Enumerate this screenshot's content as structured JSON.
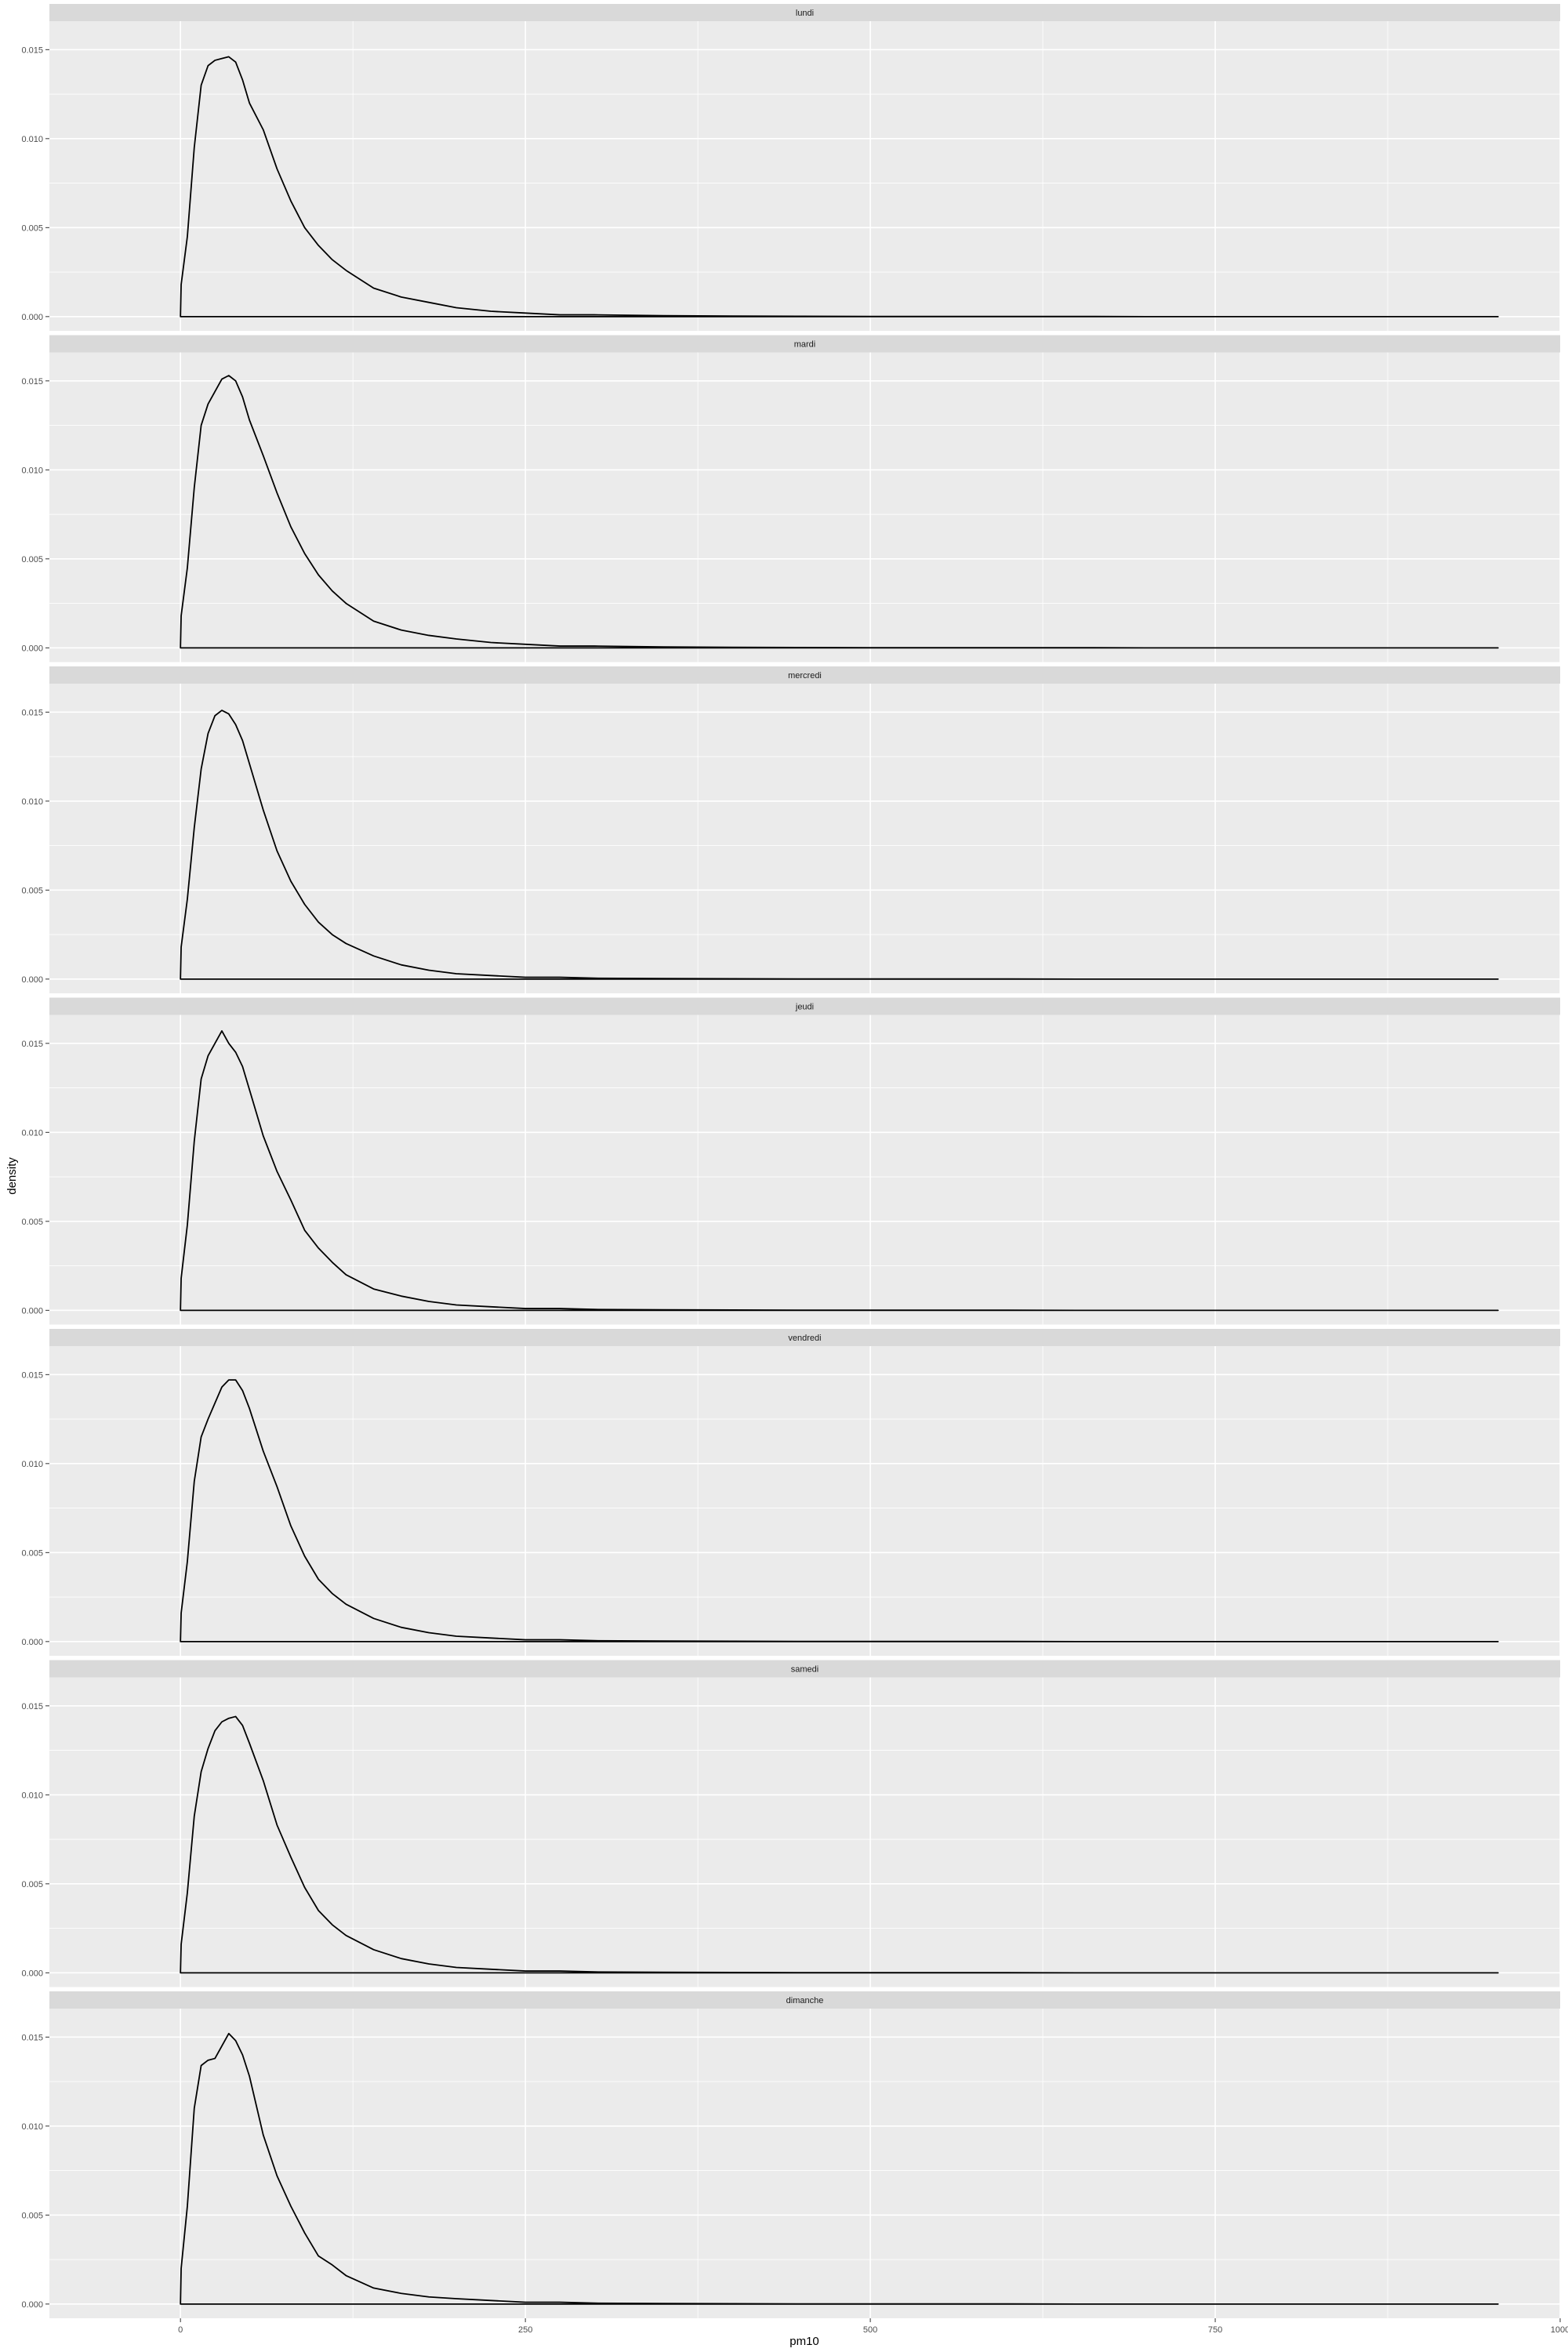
{
  "chart_data": {
    "type": "line",
    "chart_kind": "faceted density plot",
    "xlabel": "pm10",
    "ylabel": "density",
    "xlim": [
      -95,
      1000
    ],
    "ylim": [
      -0.0008,
      0.0166
    ],
    "x_ticks": [
      0,
      250,
      500,
      750,
      1000
    ],
    "x_tick_labels": [
      "0",
      "250",
      "500",
      "750",
      "1000"
    ],
    "y_ticks": [
      0.0,
      0.005,
      0.01,
      0.015
    ],
    "y_tick_labels": [
      "0.000",
      "0.005",
      "0.010",
      "0.015"
    ],
    "grid": true,
    "facets": [
      {
        "name": "lundi",
        "x": [
          0,
          0.5,
          5,
          10,
          15,
          20,
          25,
          30,
          35,
          40,
          45,
          50,
          60,
          70,
          80,
          90,
          100,
          110,
          120,
          140,
          160,
          180,
          200,
          225,
          250,
          275,
          300,
          350,
          400,
          450,
          500,
          550,
          600,
          650,
          700,
          750,
          800,
          850,
          900,
          955
        ],
        "y": [
          0,
          0.0018,
          0.0045,
          0.0095,
          0.013,
          0.0141,
          0.0144,
          0.0145,
          0.0146,
          0.0143,
          0.0133,
          0.012,
          0.0105,
          0.0083,
          0.0065,
          0.005,
          0.004,
          0.0032,
          0.0026,
          0.0016,
          0.0011,
          0.0008,
          0.0005,
          0.0003,
          0.0002,
          0.0001,
          0.0001,
          5e-05,
          3e-05,
          2e-05,
          1e-05,
          1e-05,
          1e-05,
          1e-05,
          0,
          0,
          0,
          0,
          0,
          0
        ]
      },
      {
        "name": "mardi",
        "x": [
          0,
          0.5,
          5,
          10,
          15,
          20,
          25,
          30,
          35,
          40,
          45,
          50,
          60,
          70,
          80,
          90,
          100,
          110,
          120,
          140,
          160,
          180,
          200,
          225,
          250,
          275,
          300,
          350,
          400,
          450,
          500,
          550,
          600,
          650,
          700,
          750,
          800,
          850,
          900,
          955
        ],
        "y": [
          0,
          0.0018,
          0.0045,
          0.009,
          0.0125,
          0.0137,
          0.0144,
          0.0151,
          0.0153,
          0.015,
          0.0141,
          0.0128,
          0.0108,
          0.0087,
          0.0068,
          0.0053,
          0.0041,
          0.0032,
          0.0025,
          0.0015,
          0.001,
          0.0007,
          0.0005,
          0.0003,
          0.0002,
          0.0001,
          0.0001,
          5e-05,
          3e-05,
          2e-05,
          1e-05,
          1e-05,
          1e-05,
          1e-05,
          0,
          0,
          0,
          0,
          0,
          0
        ]
      },
      {
        "name": "mercredi",
        "x": [
          0,
          0.5,
          5,
          10,
          15,
          20,
          25,
          30,
          35,
          40,
          45,
          50,
          60,
          70,
          80,
          90,
          100,
          110,
          120,
          140,
          160,
          180,
          200,
          225,
          250,
          275,
          300,
          350,
          400,
          450,
          500,
          550,
          600,
          650,
          700,
          750,
          800,
          850,
          900,
          955
        ],
        "y": [
          0,
          0.0018,
          0.0045,
          0.0085,
          0.0118,
          0.0138,
          0.0148,
          0.0151,
          0.0149,
          0.0143,
          0.0134,
          0.0121,
          0.0095,
          0.0072,
          0.0055,
          0.0042,
          0.0032,
          0.0025,
          0.002,
          0.0013,
          0.0008,
          0.0005,
          0.0003,
          0.0002,
          0.0001,
          0.0001,
          5e-05,
          3e-05,
          2e-05,
          1e-05,
          1e-05,
          1e-05,
          1e-05,
          0,
          0,
          0,
          0,
          0,
          0,
          0
        ]
      },
      {
        "name": "jeudi",
        "x": [
          0,
          0.5,
          5,
          10,
          15,
          20,
          25,
          30,
          35,
          40,
          45,
          50,
          60,
          70,
          80,
          90,
          100,
          110,
          120,
          140,
          160,
          180,
          200,
          225,
          250,
          275,
          300,
          350,
          400,
          450,
          500,
          550,
          600,
          650,
          700,
          750,
          800,
          850,
          900,
          955
        ],
        "y": [
          0,
          0.0018,
          0.0048,
          0.0095,
          0.013,
          0.0143,
          0.015,
          0.0157,
          0.015,
          0.0145,
          0.0137,
          0.0124,
          0.0098,
          0.0078,
          0.0062,
          0.0045,
          0.0035,
          0.0027,
          0.002,
          0.0012,
          0.0008,
          0.0005,
          0.0003,
          0.0002,
          0.0001,
          0.0001,
          5e-05,
          3e-05,
          2e-05,
          1e-05,
          1e-05,
          1e-05,
          1e-05,
          0,
          0,
          0,
          0,
          0,
          0,
          0
        ]
      },
      {
        "name": "vendredi",
        "x": [
          0,
          0.5,
          5,
          10,
          15,
          20,
          25,
          30,
          35,
          40,
          45,
          50,
          60,
          70,
          80,
          90,
          100,
          110,
          120,
          140,
          160,
          180,
          200,
          225,
          250,
          275,
          300,
          350,
          400,
          450,
          500,
          550,
          600,
          650,
          700,
          750,
          800,
          850,
          900,
          955
        ],
        "y": [
          0,
          0.0016,
          0.0045,
          0.009,
          0.0115,
          0.0125,
          0.0134,
          0.0143,
          0.0147,
          0.0147,
          0.0141,
          0.0131,
          0.0107,
          0.0087,
          0.0065,
          0.0048,
          0.0035,
          0.0027,
          0.0021,
          0.0013,
          0.0008,
          0.0005,
          0.0003,
          0.0002,
          0.0001,
          0.0001,
          5e-05,
          3e-05,
          2e-05,
          1e-05,
          1e-05,
          1e-05,
          1e-05,
          0,
          0,
          0,
          0,
          0,
          0,
          0
        ]
      },
      {
        "name": "samedi",
        "x": [
          0,
          0.5,
          5,
          10,
          15,
          20,
          25,
          30,
          35,
          40,
          45,
          50,
          60,
          70,
          80,
          90,
          100,
          110,
          120,
          140,
          160,
          180,
          200,
          225,
          250,
          275,
          300,
          350,
          400,
          450,
          500,
          550,
          600,
          650,
          700,
          750,
          800,
          850,
          900,
          955
        ],
        "y": [
          0,
          0.0016,
          0.0045,
          0.0088,
          0.0113,
          0.0126,
          0.0136,
          0.0141,
          0.0143,
          0.0144,
          0.0139,
          0.0129,
          0.0108,
          0.0083,
          0.0065,
          0.0048,
          0.0035,
          0.0027,
          0.0021,
          0.0013,
          0.0008,
          0.0005,
          0.0003,
          0.0002,
          0.0001,
          0.0001,
          5e-05,
          3e-05,
          2e-05,
          1e-05,
          1e-05,
          1e-05,
          1e-05,
          0,
          0,
          0,
          0,
          0,
          0,
          0
        ]
      },
      {
        "name": "dimanche",
        "x": [
          0,
          0.5,
          5,
          10,
          15,
          20,
          25,
          30,
          35,
          40,
          45,
          50,
          60,
          70,
          80,
          90,
          100,
          110,
          120,
          140,
          160,
          180,
          200,
          225,
          250,
          275,
          300,
          350,
          400,
          450,
          500,
          550,
          600,
          650,
          700,
          750,
          800,
          850,
          900,
          955
        ],
        "y": [
          0,
          0.002,
          0.0055,
          0.011,
          0.0134,
          0.0137,
          0.0138,
          0.0145,
          0.0152,
          0.0148,
          0.014,
          0.0128,
          0.0095,
          0.0072,
          0.0055,
          0.004,
          0.0027,
          0.0022,
          0.0016,
          0.0009,
          0.0006,
          0.0004,
          0.0003,
          0.0002,
          0.0001,
          0.0001,
          5e-05,
          3e-05,
          2e-05,
          1e-05,
          1e-05,
          1e-05,
          1e-05,
          0,
          0,
          0,
          0,
          0,
          0,
          0
        ]
      }
    ]
  },
  "colors": {
    "panel_background": "#ebebeb",
    "strip_background": "#d9d9d9",
    "grid": "#ffffff",
    "line": "#000000",
    "tick_label": "#4d4d4d"
  }
}
